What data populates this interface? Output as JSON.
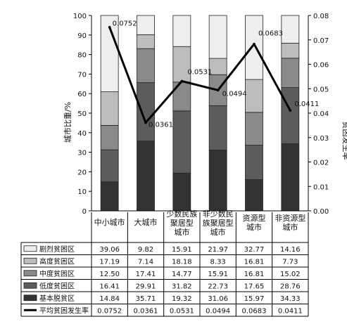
{
  "chart_data": {
    "type": "bar",
    "stacked": true,
    "categories": [
      "中小城市",
      "大城市",
      "少数民族聚居型城市",
      "非少数民族聚居型城市",
      "资源型城市",
      "非资源型城市"
    ],
    "category_lines": [
      [
        "中小城市"
      ],
      [
        "大城市"
      ],
      [
        "少数民族",
        "聚居型",
        "城市"
      ],
      [
        "非少数民",
        "族聚居型",
        "城市"
      ],
      [
        "资源型",
        "城市"
      ],
      [
        "非资源型",
        "城市"
      ]
    ],
    "series": [
      {
        "name": "基本脱贫区",
        "values": [
          14.84,
          35.71,
          19.32,
          31.06,
          15.97,
          34.33
        ],
        "color": "#333333"
      },
      {
        "name": "低度贫困区",
        "values": [
          16.41,
          29.91,
          31.82,
          22.73,
          17.65,
          28.76
        ],
        "color": "#5c5c5c"
      },
      {
        "name": "中度贫困区",
        "values": [
          12.5,
          17.41,
          14.77,
          15.91,
          16.81,
          15.02
        ],
        "color": "#8a8a8a"
      },
      {
        "name": "高度贫困区",
        "values": [
          17.19,
          7.14,
          18.18,
          8.33,
          16.81,
          7.73
        ],
        "color": "#bdbdbd"
      },
      {
        "name": "剧烈贫困区",
        "values": [
          39.06,
          9.82,
          15.91,
          21.97,
          32.77,
          14.16
        ],
        "color": "#eeeeee"
      }
    ],
    "line_series": {
      "name": "平均贫困发生率",
      "values": [
        0.0752,
        0.0361,
        0.0531,
        0.0494,
        0.0683,
        0.0411
      ],
      "labels": [
        "0.0752",
        "0.0361",
        "0.0531",
        "0.0494",
        "0.0683",
        "0.0411"
      ]
    },
    "table_rows": [
      {
        "label": "剧烈贫困区",
        "cells": [
          "39.06",
          "9.82",
          "15.91",
          "21.97",
          "32.77",
          "14.16"
        ]
      },
      {
        "label": "高度贫困区",
        "cells": [
          "17.19",
          "7.14",
          "18.18",
          "8.33",
          "16.81",
          "7.73"
        ]
      },
      {
        "label": "中度贫困区",
        "cells": [
          "12.50",
          "17.41",
          "14.77",
          "15.91",
          "16.81",
          "15.02"
        ]
      },
      {
        "label": "低度贫困区",
        "cells": [
          "16.41",
          "29.91",
          "31.82",
          "22.73",
          "17.65",
          "28.76"
        ]
      },
      {
        "label": "基本脱贫区",
        "cells": [
          "14.84",
          "35.71",
          "19.32",
          "31.06",
          "15.97",
          "34.33"
        ]
      },
      {
        "label": "平均贫困发生率",
        "cells": [
          "0.0752",
          "0.0361",
          "0.0531",
          "0.0494",
          "0.0683",
          "0.0411"
        ]
      }
    ],
    "ylabel": "城市比重/%",
    "y2label": "贫困发生率",
    "ylim": [
      0,
      100
    ],
    "y2lim": [
      0,
      0.08
    ],
    "y_ticks": [
      "0",
      "10",
      "20",
      "30",
      "40",
      "50",
      "60",
      "70",
      "80",
      "90",
      "100"
    ],
    "y2_ticks": [
      "0.00",
      "0.01",
      "0.02",
      "0.03",
      "0.04",
      "0.05",
      "0.06",
      "0.07",
      "0.08"
    ],
    "grid": false,
    "legend": "table-left"
  }
}
